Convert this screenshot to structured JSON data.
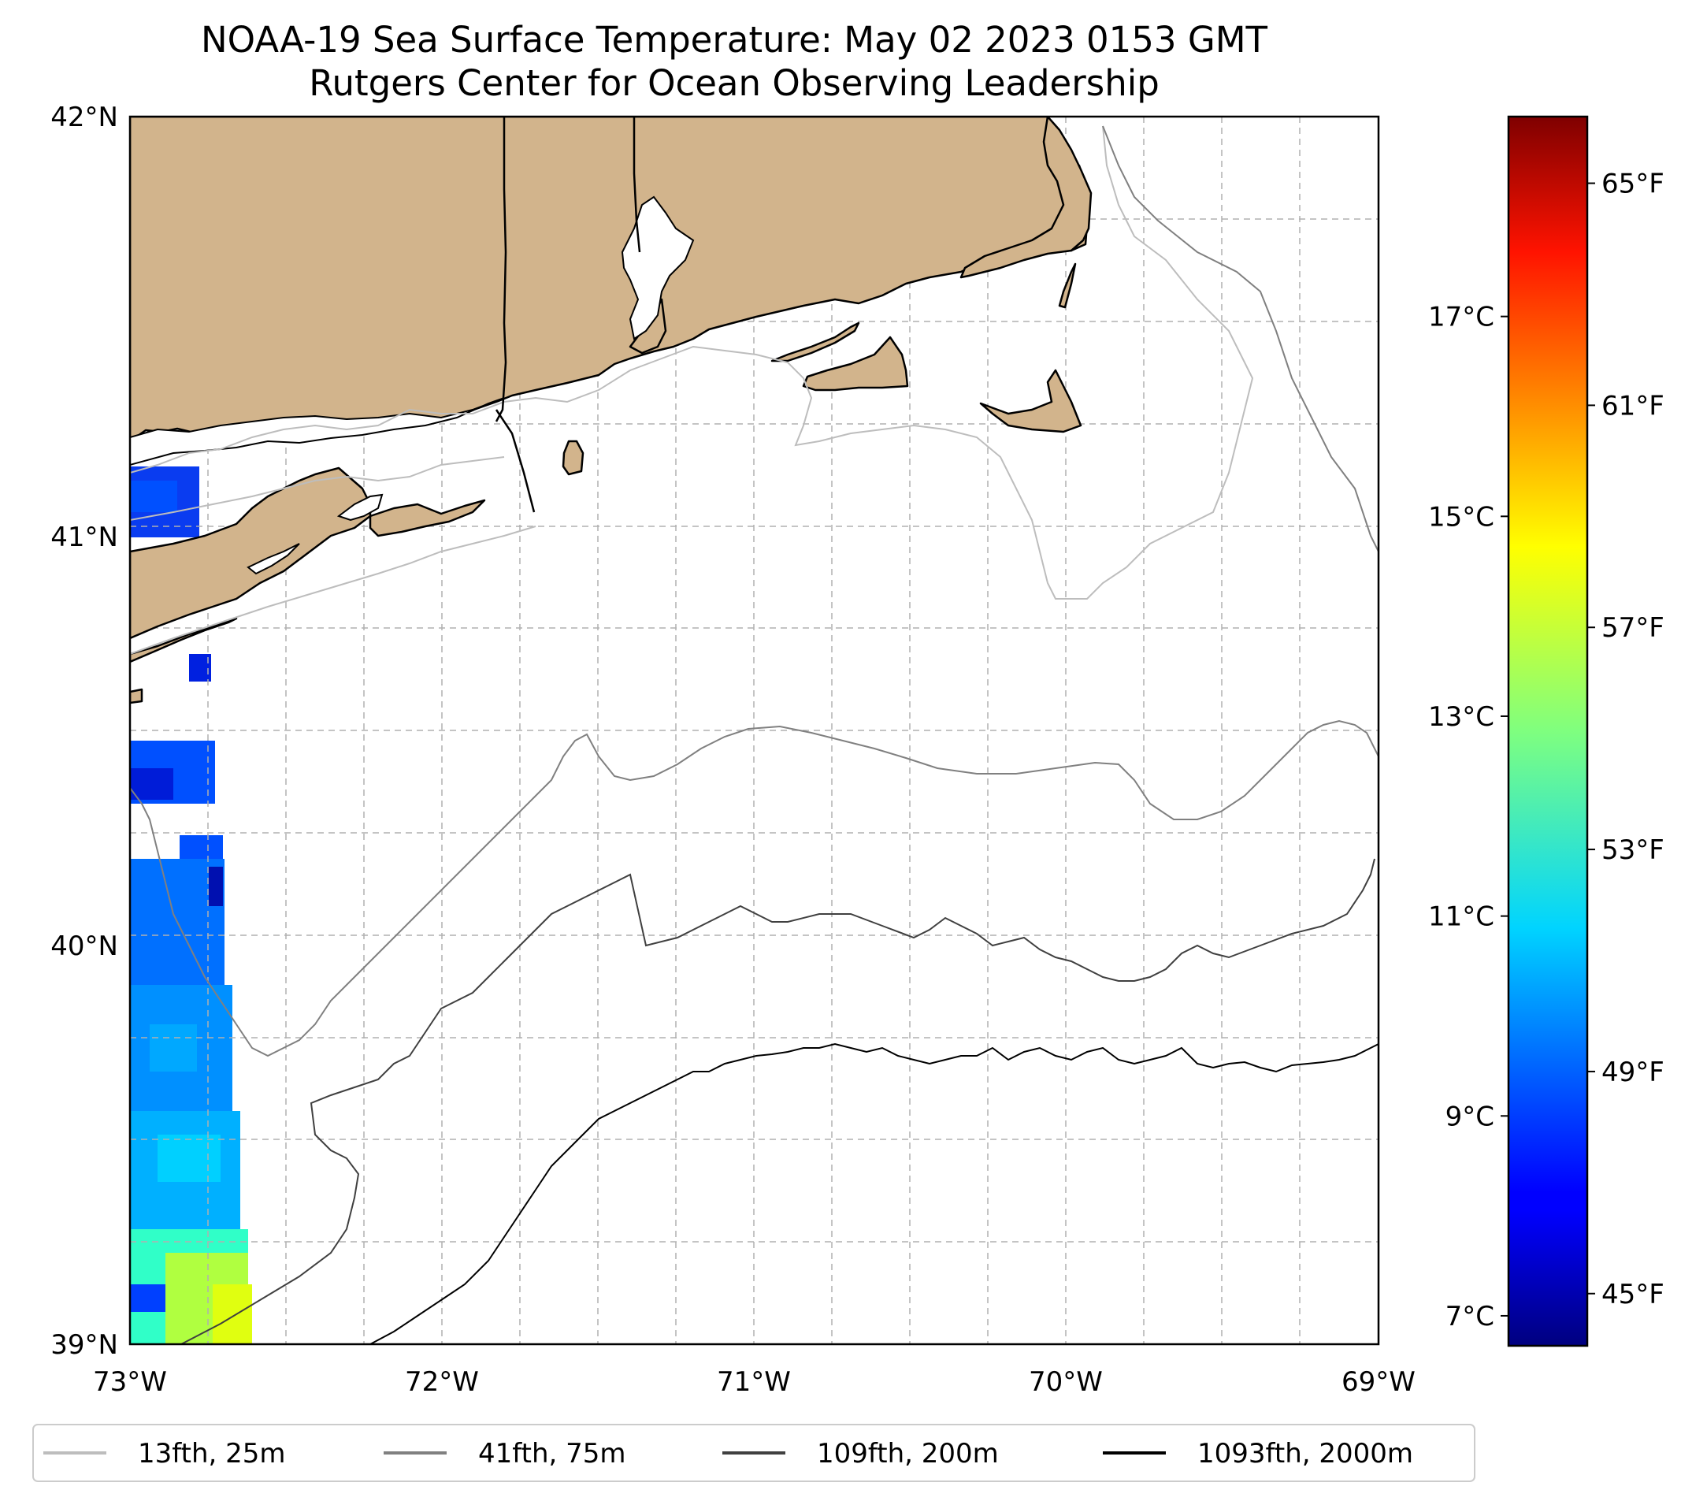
{
  "title": {
    "line1": "NOAA-19 Sea Surface Temperature: May 02 2023 0153 GMT",
    "line2": "Rutgers Center for Ocean Observing Leadership"
  },
  "map": {
    "lon_range": [
      -73,
      -69
    ],
    "lat_range": [
      39,
      42
    ],
    "x_ticks": [
      {
        "lon": -73,
        "label": "73°W"
      },
      {
        "lon": -72,
        "label": "72°W"
      },
      {
        "lon": -71,
        "label": "71°W"
      },
      {
        "lon": -70,
        "label": "70°W"
      },
      {
        "lon": -69,
        "label": "69°W"
      }
    ],
    "y_ticks": [
      {
        "lat": 42,
        "label": "42°N"
      },
      {
        "lat": 41,
        "label": "41°N"
      },
      {
        "lat": 40,
        "label": "40°N"
      },
      {
        "lat": 39,
        "label": "39°N"
      }
    ],
    "grid": true,
    "land_color": "#d2b48c"
  },
  "colorbar": {
    "colormap": "jet",
    "range_c": [
      6.7,
      19.0
    ],
    "celsius_ticks": [
      {
        "value": 7,
        "label": "7°C"
      },
      {
        "value": 9,
        "label": "9°C"
      },
      {
        "value": 11,
        "label": "11°C"
      },
      {
        "value": 13,
        "label": "13°C"
      },
      {
        "value": 15,
        "label": "15°C"
      },
      {
        "value": 17,
        "label": "17°C"
      }
    ],
    "fahrenheit_ticks": [
      {
        "value": 45,
        "label": "45°F"
      },
      {
        "value": 49,
        "label": "49°F"
      },
      {
        "value": 53,
        "label": "53°F"
      },
      {
        "value": 57,
        "label": "57°F"
      },
      {
        "value": 61,
        "label": "61°F"
      },
      {
        "value": 65,
        "label": "65°F"
      }
    ]
  },
  "legend": {
    "placement": "bottom",
    "items": [
      {
        "label": "13fth, 25m",
        "color": "#bdbdbd"
      },
      {
        "label": "41fth, 75m",
        "color": "#808080"
      },
      {
        "label": "109fth, 200m",
        "color": "#404040"
      },
      {
        "label": "1093fth, 2000m",
        "color": "#000000"
      }
    ]
  }
}
